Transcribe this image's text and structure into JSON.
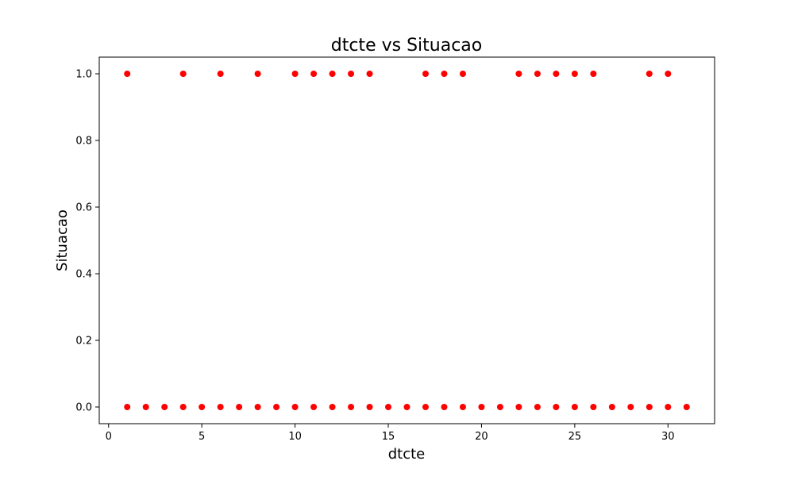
{
  "chart_data": {
    "type": "scatter",
    "title": "dtcte vs Situacao",
    "xlabel": "dtcte",
    "ylabel": "Situacao",
    "xlim": [
      -0.5,
      32.5
    ],
    "ylim": [
      -0.05,
      1.05
    ],
    "xticks": [
      0,
      5,
      10,
      15,
      20,
      25,
      30
    ],
    "yticks": [
      0.0,
      0.2,
      0.4,
      0.6,
      0.8,
      1.0
    ],
    "xtick_labels": [
      "0",
      "5",
      "10",
      "15",
      "20",
      "25",
      "30"
    ],
    "ytick_labels": [
      "0.0",
      "0.2",
      "0.4",
      "0.6",
      "0.8",
      "1.0"
    ],
    "grid": false,
    "marker_color": "#ff0000",
    "series": [
      {
        "points": [
          [
            1,
            1
          ],
          [
            4,
            1
          ],
          [
            6,
            1
          ],
          [
            8,
            1
          ],
          [
            10,
            1
          ],
          [
            11,
            1
          ],
          [
            12,
            1
          ],
          [
            13,
            1
          ],
          [
            14,
            1
          ],
          [
            17,
            1
          ],
          [
            18,
            1
          ],
          [
            19,
            1
          ],
          [
            22,
            1
          ],
          [
            23,
            1
          ],
          [
            24,
            1
          ],
          [
            25,
            1
          ],
          [
            26,
            1
          ],
          [
            29,
            1
          ],
          [
            30,
            1
          ],
          [
            1,
            0
          ],
          [
            2,
            0
          ],
          [
            3,
            0
          ],
          [
            4,
            0
          ],
          [
            5,
            0
          ],
          [
            6,
            0
          ],
          [
            7,
            0
          ],
          [
            8,
            0
          ],
          [
            9,
            0
          ],
          [
            10,
            0
          ],
          [
            11,
            0
          ],
          [
            12,
            0
          ],
          [
            13,
            0
          ],
          [
            14,
            0
          ],
          [
            15,
            0
          ],
          [
            16,
            0
          ],
          [
            17,
            0
          ],
          [
            18,
            0
          ],
          [
            19,
            0
          ],
          [
            20,
            0
          ],
          [
            21,
            0
          ],
          [
            22,
            0
          ],
          [
            23,
            0
          ],
          [
            24,
            0
          ],
          [
            25,
            0
          ],
          [
            26,
            0
          ],
          [
            27,
            0
          ],
          [
            28,
            0
          ],
          [
            29,
            0
          ],
          [
            30,
            0
          ],
          [
            31,
            0
          ]
        ]
      }
    ]
  }
}
